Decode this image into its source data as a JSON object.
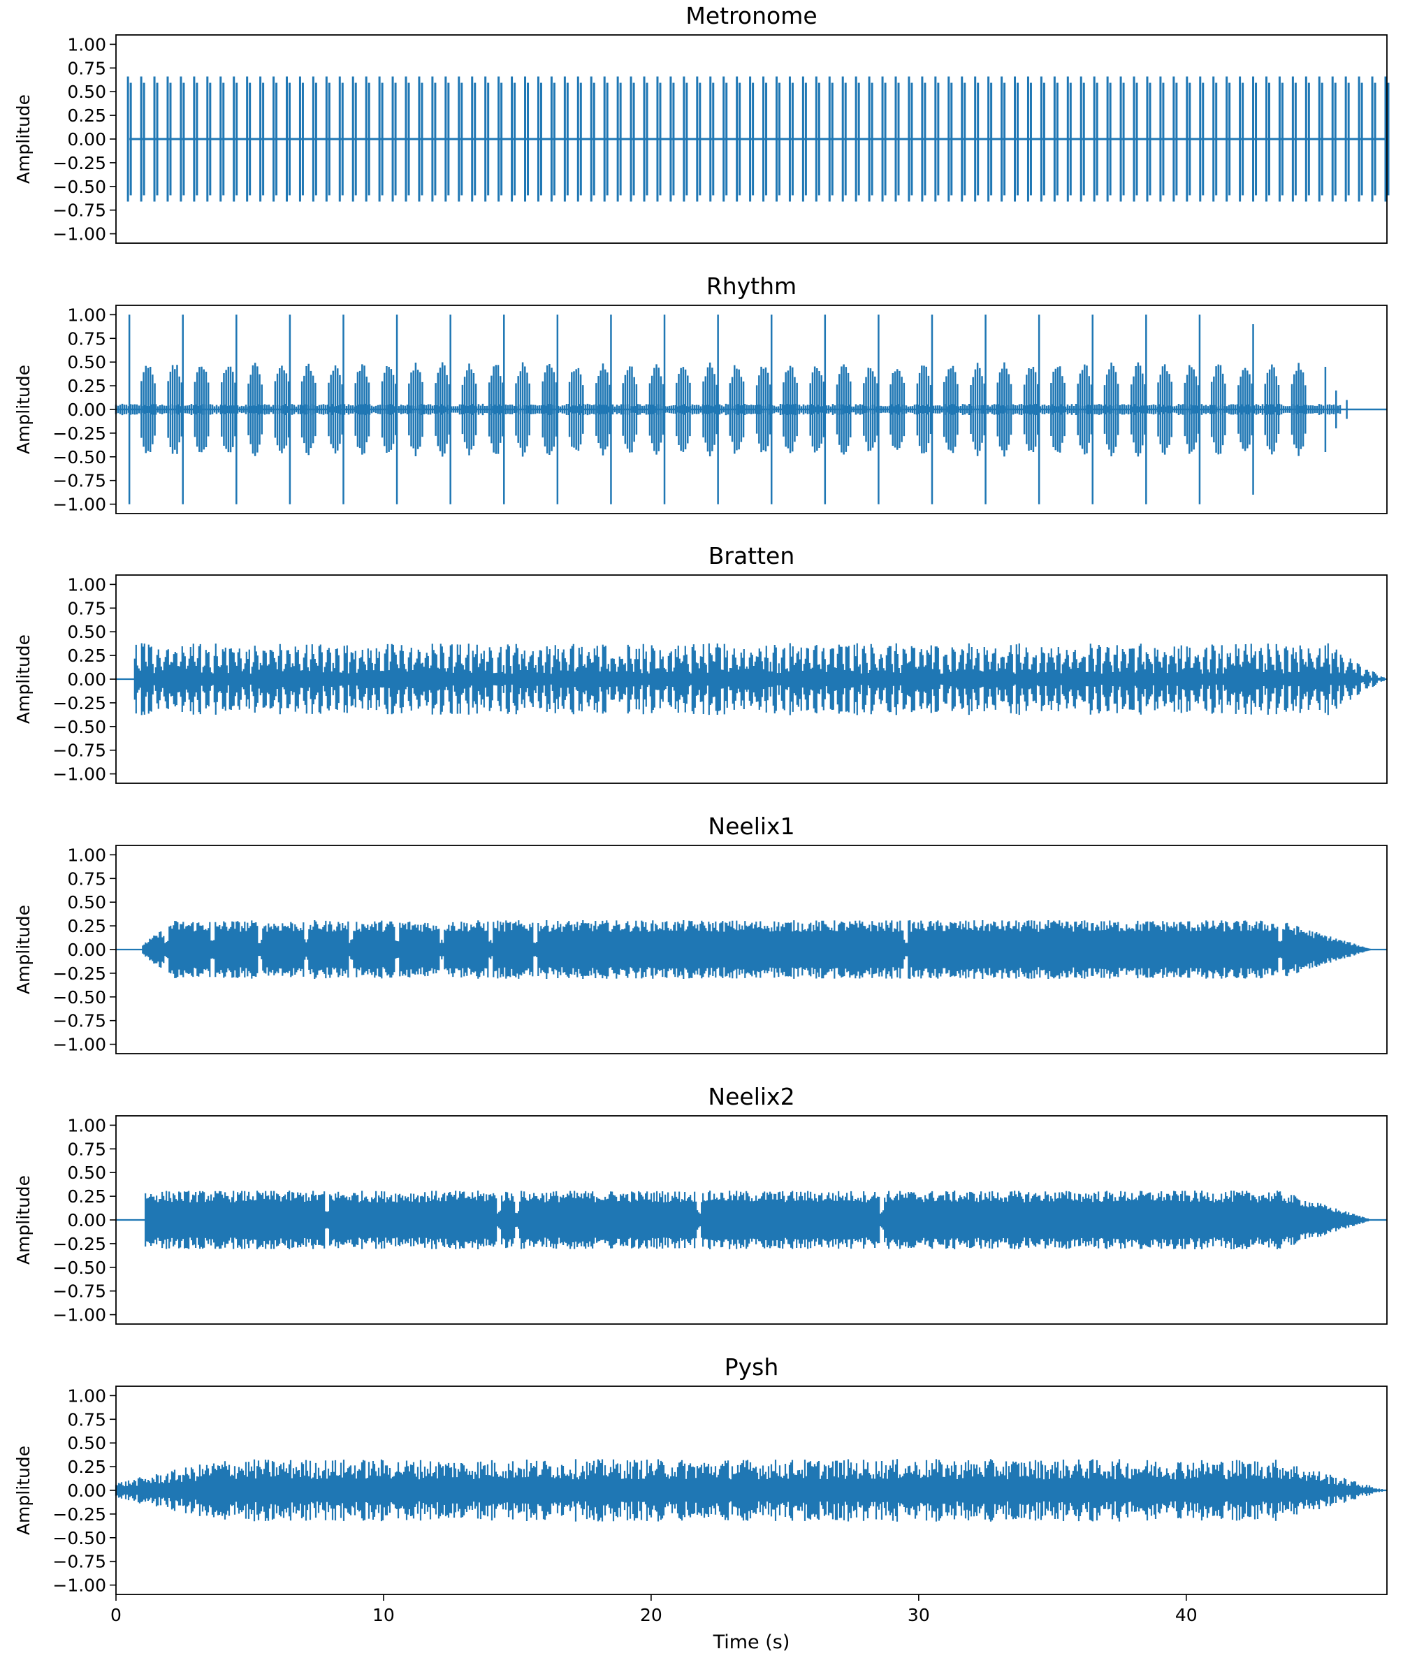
{
  "chart_data": [
    {
      "type": "line",
      "title": "Metronome",
      "ylabel": "Amplitude",
      "ylim": [
        -1.0,
        1.0
      ],
      "xlim": [
        0,
        47.5
      ],
      "yticks": [
        "1.00",
        "0.75",
        "0.50",
        "0.25",
        "0.00",
        "−0.25",
        "−0.50",
        "−0.75",
        "−1.00"
      ],
      "series": [
        {
          "amplitude": 0.66,
          "events": 95,
          "start": 0.5,
          "end": 47.5
        }
      ]
    },
    {
      "type": "line",
      "title": "Rhythm",
      "ylabel": "Amplitude",
      "ylim": [
        -1.0,
        1.0
      ],
      "xlim": [
        0,
        47.5
      ],
      "yticks": [
        "1.00",
        "0.75",
        "0.50",
        "0.25",
        "0.00",
        "−0.25",
        "−0.50",
        "−0.75",
        "−1.00"
      ],
      "series": [
        {
          "strong_amplitude": 1.0,
          "weak_amplitude": 0.5,
          "start": 0.5,
          "end": 45.5
        }
      ]
    },
    {
      "type": "line",
      "title": "Bratten",
      "ylabel": "Amplitude",
      "ylim": [
        -1.0,
        1.0
      ],
      "xlim": [
        0,
        47.5
      ],
      "yticks": [
        "1.00",
        "0.75",
        "0.50",
        "0.25",
        "0.00",
        "−0.25",
        "−0.50",
        "−0.75",
        "−1.00"
      ],
      "series": [
        {
          "amplitude": 0.38,
          "start": 0.7,
          "end": 47.5
        }
      ]
    },
    {
      "type": "line",
      "title": "Neelix1",
      "ylabel": "Amplitude",
      "ylim": [
        -1.0,
        1.0
      ],
      "xlim": [
        0,
        47.5
      ],
      "yticks": [
        "1.00",
        "0.75",
        "0.50",
        "0.25",
        "0.00",
        "−0.25",
        "−0.50",
        "−0.75",
        "−1.00"
      ],
      "series": [
        {
          "amplitude": 0.31,
          "start": 1.0,
          "end": 47.0
        }
      ]
    },
    {
      "type": "line",
      "title": "Neelix2",
      "ylabel": "Amplitude",
      "ylim": [
        -1.0,
        1.0
      ],
      "xlim": [
        0,
        47.5
      ],
      "yticks": [
        "1.00",
        "0.75",
        "0.50",
        "0.25",
        "0.00",
        "−0.25",
        "−0.50",
        "−0.75",
        "−1.00"
      ],
      "series": [
        {
          "amplitude": 0.31,
          "start": 1.1,
          "end": 47.0
        }
      ]
    },
    {
      "type": "line",
      "title": "Pysh",
      "ylabel": "Amplitude",
      "ylim": [
        -1.0,
        1.0
      ],
      "xlim": [
        0,
        47.5
      ],
      "xlabel": "Time (s)",
      "xticks": [
        "0",
        "10",
        "20",
        "30",
        "40"
      ],
      "yticks": [
        "1.00",
        "0.75",
        "0.50",
        "0.25",
        "0.00",
        "−0.25",
        "−0.50",
        "−0.75",
        "−1.00"
      ],
      "series": [
        {
          "amplitude": 0.33,
          "start": 0.0,
          "end": 47.5
        }
      ]
    }
  ],
  "colors": {
    "wave": "#1f77b4",
    "axes": "#000000"
  }
}
